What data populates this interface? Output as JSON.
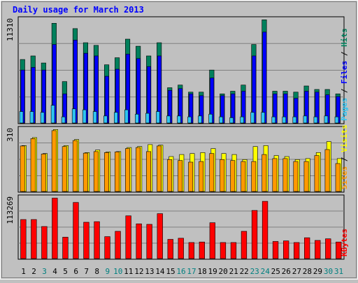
{
  "chart_data": [
    {
      "type": "bar",
      "title": "Daily usage for March 2013",
      "ymax_label": "11310",
      "axis_label_parts": [
        "Pages",
        "Files",
        "Hits"
      ],
      "axis_label_separator": " / ",
      "colors": {
        "pages": "#2ec4f2",
        "files": "#0000ff",
        "hits": "#00805c"
      },
      "categories": [
        "1",
        "2",
        "3",
        "4",
        "5",
        "6",
        "7",
        "8",
        "9",
        "10",
        "11",
        "12",
        "13",
        "14",
        "15",
        "16",
        "17",
        "18",
        "19",
        "20",
        "21",
        "22",
        "23",
        "24",
        "25",
        "26",
        "27",
        "28",
        "29",
        "30",
        "31"
      ],
      "series": [
        {
          "name": "Hits",
          "values": [
            7200,
            7600,
            6800,
            11300,
            4700,
            10700,
            9100,
            8800,
            6600,
            7400,
            9500,
            8700,
            7600,
            9100,
            4000,
            4300,
            3500,
            3500,
            6000,
            3300,
            3600,
            4300,
            8900,
            11700,
            3600,
            3600,
            3500,
            4200,
            3800,
            3800,
            3300
          ]
        },
        {
          "name": "Files",
          "values": [
            6000,
            6300,
            6000,
            8900,
            3300,
            9400,
            7900,
            7600,
            5300,
            6100,
            7800,
            7300,
            6400,
            7600,
            3700,
            3900,
            3300,
            3100,
            5100,
            3100,
            3300,
            3600,
            7600,
            10300,
            3300,
            3300,
            2800,
            3600,
            3500,
            3200,
            3000
          ]
        },
        {
          "name": "Pages",
          "values": [
            1300,
            1300,
            1200,
            2000,
            700,
            1600,
            1500,
            1300,
            800,
            1200,
            1500,
            1000,
            1100,
            1300,
            800,
            800,
            700,
            800,
            1000,
            700,
            600,
            700,
            1200,
            1200,
            700,
            700,
            700,
            800,
            700,
            800,
            700
          ]
        }
      ]
    },
    {
      "type": "bar",
      "ymax_label": "310",
      "axis_label_parts": [
        "Sites",
        "Visits"
      ],
      "axis_label_separator": " / ",
      "colors": {
        "visits": "#ffff00",
        "sites": "#ff9900"
      },
      "categories": [
        "1",
        "2",
        "3",
        "4",
        "5",
        "6",
        "7",
        "8",
        "9",
        "10",
        "11",
        "12",
        "13",
        "14",
        "15",
        "16",
        "17",
        "18",
        "19",
        "20",
        "21",
        "22",
        "23",
        "24",
        "25",
        "26",
        "27",
        "28",
        "29",
        "30",
        "31"
      ],
      "series": [
        {
          "name": "Visits",
          "values": [
            230,
            270,
            190,
            310,
            230,
            260,
            195,
            208,
            198,
            200,
            220,
            225,
            235,
            232,
            175,
            185,
            190,
            195,
            215,
            190,
            185,
            160,
            225,
            230,
            180,
            175,
            160,
            165,
            195,
            250,
            165
          ]
        },
        {
          "name": "Sites",
          "values": [
            228,
            265,
            188,
            305,
            225,
            255,
            192,
            200,
            195,
            198,
            215,
            220,
            200,
            228,
            160,
            155,
            147,
            150,
            190,
            160,
            155,
            150,
            150,
            185,
            165,
            165,
            150,
            150,
            180,
            210,
            140
          ]
        }
      ]
    },
    {
      "type": "bar",
      "ymax_label": "113269",
      "axis_label_parts": [
        "KBytes"
      ],
      "axis_label_separator": "",
      "colors": {
        "kbytes": "#ff0000"
      },
      "categories": [
        "1",
        "2",
        "3",
        "4",
        "5",
        "6",
        "7",
        "8",
        "9",
        "10",
        "11",
        "12",
        "13",
        "14",
        "15",
        "16",
        "17",
        "18",
        "19",
        "20",
        "21",
        "22",
        "23",
        "24",
        "25",
        "26",
        "27",
        "28",
        "29",
        "30",
        "31"
      ],
      "series": [
        {
          "name": "KBytes",
          "values": [
            73000,
            73000,
            60000,
            113000,
            40000,
            105000,
            68000,
            69000,
            41000,
            51000,
            80000,
            65000,
            64000,
            84000,
            36000,
            38000,
            30000,
            31000,
            67000,
            30000,
            30000,
            51000,
            90000,
            107000,
            32000,
            33000,
            30000,
            39000,
            34000,
            37000,
            31000
          ]
        }
      ]
    }
  ],
  "x_label_colors": [
    "#000000",
    "#000000",
    "#008080",
    "#000000",
    "#000000",
    "#000000",
    "#000000",
    "#000000",
    "#008080",
    "#008080",
    "#000000",
    "#000000",
    "#000000",
    "#000000",
    "#000000",
    "#008080",
    "#008080",
    "#000000",
    "#000000",
    "#000000",
    "#000000",
    "#000000",
    "#008080",
    "#008080",
    "#000000",
    "#000000",
    "#000000",
    "#000000",
    "#000000",
    "#008080",
    "#008080"
  ]
}
